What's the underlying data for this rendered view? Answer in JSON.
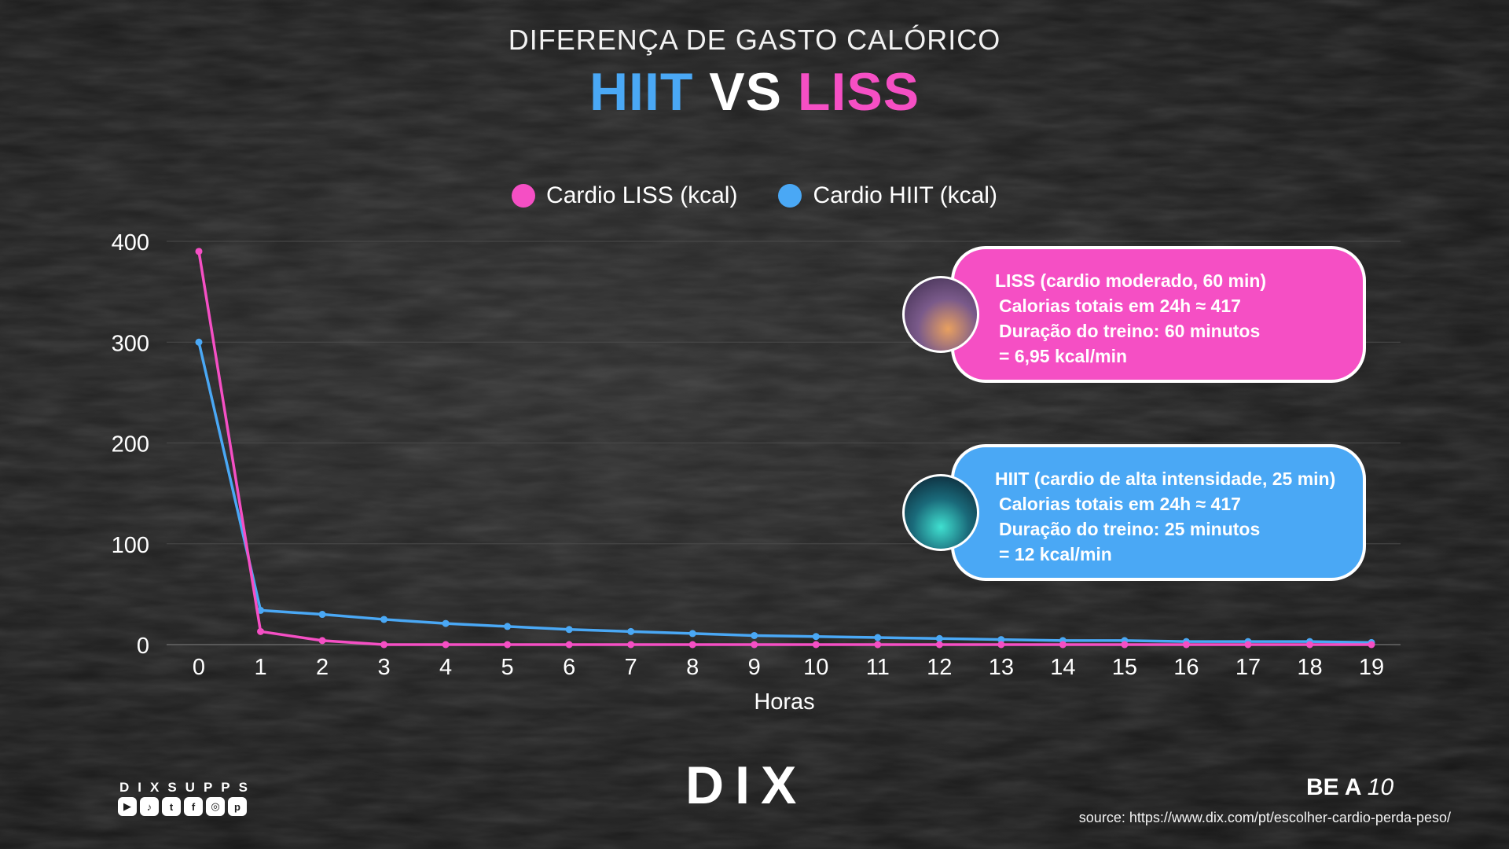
{
  "header": {
    "subtitle": "DIFERENÇA DE GASTO CALÓRICO",
    "title_hiit": "HIIT",
    "title_vs": "VS",
    "title_liss": "LISS"
  },
  "colors": {
    "liss": "#f54fc4",
    "hiit": "#4aa8f5",
    "grid": "#4a4a4a",
    "text": "#ffffff"
  },
  "cards": {
    "liss": {
      "line1": "LISS (cardio moderado, 60 min)",
      "line2": "Calorias totais em 24h ≈ 417",
      "line3": "Duração do treino: 60 minutos",
      "line4": "= 6,95 kcal/min"
    },
    "hiit": {
      "line1": "HIIT (cardio de alta intensidade, 25 min)",
      "line2": "Calorias totais em 24h ≈ 417",
      "line3": "Duração do treino: 25 minutos",
      "line4": "= 12 kcal/min"
    }
  },
  "footer": {
    "brand_small": "DIXSUPPS",
    "social_icons": [
      "youtube-icon",
      "tiktok-icon",
      "twitter-icon",
      "facebook-icon",
      "instagram-icon",
      "pinterest-icon"
    ],
    "logo": "DIX",
    "tagline_text": "BE A",
    "tagline_num": "10",
    "source": "source: https://www.dix.com/pt/escolher-cardio-perda-peso/"
  },
  "chart_data": {
    "type": "line",
    "xlabel": "Horas",
    "ylabel": "",
    "x": [
      0,
      1,
      2,
      3,
      4,
      5,
      6,
      7,
      8,
      9,
      10,
      11,
      12,
      13,
      14,
      15,
      16,
      17,
      18,
      19
    ],
    "ylim": [
      0,
      400
    ],
    "yticks": [
      0,
      100,
      200,
      300,
      400
    ],
    "grid": true,
    "legend": "top-center",
    "series": [
      {
        "name": "Cardio LISS (kcal)",
        "color": "#f54fc4",
        "values": [
          390,
          13,
          4,
          0,
          0,
          0,
          0,
          0,
          0,
          0,
          0,
          0,
          0,
          0,
          0,
          0,
          0,
          0,
          0,
          0
        ]
      },
      {
        "name": "Cardio HIIT (kcal)",
        "color": "#4aa8f5",
        "values": [
          300,
          34,
          30,
          25,
          21,
          18,
          15,
          13,
          11,
          9,
          8,
          7,
          6,
          5,
          4,
          4,
          3,
          3,
          3,
          2
        ]
      }
    ]
  }
}
